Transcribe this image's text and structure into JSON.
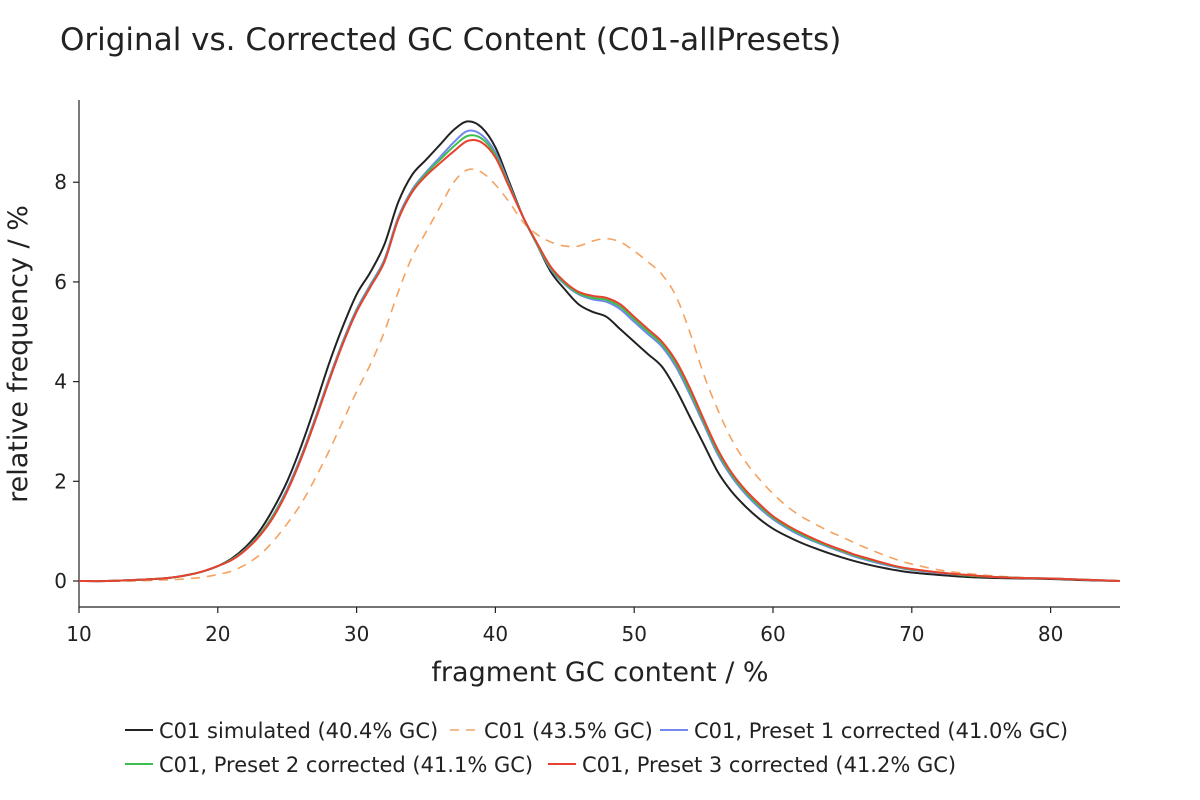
{
  "chart_data": {
    "type": "line",
    "title": "Original vs. Corrected GC Content (C01-allPresets)",
    "xlabel": "fragment GC content / %",
    "ylabel": "relative frequency / %",
    "xlim": [
      10,
      85
    ],
    "ylim": [
      -0.5,
      9.65
    ],
    "xticks": [
      10,
      20,
      30,
      40,
      50,
      60,
      70,
      80
    ],
    "yticks": [
      0,
      2,
      4,
      6,
      8
    ],
    "grid": false,
    "legend_position": "bottom",
    "x": [
      10,
      12,
      14,
      16,
      17,
      18,
      19,
      20,
      21,
      22,
      23,
      24,
      25,
      26,
      27,
      28,
      29,
      30,
      31,
      32,
      33,
      34,
      35,
      36,
      37,
      38,
      39,
      40,
      41,
      42,
      43,
      44,
      45,
      46,
      47,
      48,
      49,
      50,
      51,
      52,
      53,
      54,
      55,
      56,
      57,
      58,
      59,
      60,
      61,
      62,
      63,
      64,
      65,
      66,
      67,
      68,
      69,
      70,
      72,
      74,
      76,
      78,
      80,
      82,
      85
    ],
    "series": [
      {
        "name": "C01 simulated (40.4% GC)",
        "color": "#222222",
        "dash": "solid",
        "values": [
          0.0,
          0.0,
          0.02,
          0.05,
          0.08,
          0.13,
          0.2,
          0.3,
          0.45,
          0.68,
          1.0,
          1.45,
          2.0,
          2.7,
          3.5,
          4.35,
          5.1,
          5.75,
          6.2,
          6.75,
          7.6,
          8.15,
          8.45,
          8.75,
          9.05,
          9.22,
          9.1,
          8.7,
          8.0,
          7.3,
          6.75,
          6.2,
          5.85,
          5.55,
          5.4,
          5.3,
          5.05,
          4.8,
          4.55,
          4.3,
          3.85,
          3.3,
          2.75,
          2.2,
          1.8,
          1.5,
          1.25,
          1.05,
          0.9,
          0.77,
          0.66,
          0.56,
          0.47,
          0.39,
          0.32,
          0.26,
          0.21,
          0.17,
          0.12,
          0.08,
          0.06,
          0.05,
          0.04,
          0.02,
          0.0
        ]
      },
      {
        "name": "C01 (43.5% GC)",
        "color": "#f4a261",
        "dash": "dashed",
        "values": [
          0.0,
          0.0,
          0.0,
          0.02,
          0.03,
          0.05,
          0.08,
          0.13,
          0.2,
          0.33,
          0.52,
          0.8,
          1.15,
          1.55,
          2.05,
          2.6,
          3.2,
          3.8,
          4.35,
          5.0,
          5.8,
          6.5,
          7.0,
          7.5,
          8.0,
          8.25,
          8.2,
          7.95,
          7.6,
          7.2,
          6.95,
          6.8,
          6.72,
          6.72,
          6.82,
          6.87,
          6.8,
          6.62,
          6.4,
          6.15,
          5.72,
          5.0,
          4.15,
          3.45,
          2.85,
          2.4,
          2.05,
          1.75,
          1.5,
          1.3,
          1.15,
          1.0,
          0.88,
          0.75,
          0.63,
          0.52,
          0.42,
          0.34,
          0.22,
          0.15,
          0.1,
          0.07,
          0.05,
          0.03,
          0.0
        ]
      },
      {
        "name": "C01, Preset 1 corrected (41.0% GC)",
        "color": "#7287f0",
        "dash": "solid",
        "values": [
          0.0,
          0.0,
          0.02,
          0.05,
          0.08,
          0.13,
          0.2,
          0.3,
          0.43,
          0.64,
          0.93,
          1.33,
          1.85,
          2.5,
          3.25,
          4.05,
          4.8,
          5.45,
          5.95,
          6.45,
          7.3,
          7.85,
          8.2,
          8.5,
          8.8,
          9.03,
          8.95,
          8.6,
          7.95,
          7.3,
          6.75,
          6.25,
          5.95,
          5.75,
          5.65,
          5.6,
          5.45,
          5.2,
          4.95,
          4.7,
          4.3,
          3.75,
          3.15,
          2.55,
          2.1,
          1.75,
          1.47,
          1.24,
          1.06,
          0.91,
          0.79,
          0.68,
          0.58,
          0.48,
          0.4,
          0.33,
          0.27,
          0.22,
          0.16,
          0.11,
          0.08,
          0.06,
          0.05,
          0.03,
          0.0
        ]
      },
      {
        "name": "C01, Preset 2 corrected (41.1% GC)",
        "color": "#3dbf4f",
        "dash": "solid",
        "values": [
          0.0,
          0.0,
          0.02,
          0.05,
          0.08,
          0.13,
          0.2,
          0.3,
          0.43,
          0.63,
          0.92,
          1.31,
          1.82,
          2.47,
          3.22,
          4.02,
          4.77,
          5.42,
          5.92,
          6.42,
          7.27,
          7.82,
          8.17,
          8.45,
          8.72,
          8.93,
          8.88,
          8.55,
          7.93,
          7.3,
          6.76,
          6.27,
          5.97,
          5.77,
          5.68,
          5.64,
          5.5,
          5.25,
          5.0,
          4.75,
          4.36,
          3.81,
          3.2,
          2.6,
          2.14,
          1.79,
          1.51,
          1.27,
          1.09,
          0.94,
          0.81,
          0.7,
          0.6,
          0.5,
          0.42,
          0.35,
          0.28,
          0.23,
          0.17,
          0.11,
          0.08,
          0.06,
          0.05,
          0.03,
          0.0
        ]
      },
      {
        "name": "C01, Preset 3 corrected (41.2% GC)",
        "color": "#e8412f",
        "dash": "solid",
        "values": [
          0.0,
          0.0,
          0.02,
          0.05,
          0.08,
          0.13,
          0.2,
          0.3,
          0.42,
          0.62,
          0.9,
          1.28,
          1.8,
          2.45,
          3.2,
          4.0,
          4.75,
          5.4,
          5.9,
          6.4,
          7.25,
          7.8,
          8.13,
          8.38,
          8.62,
          8.83,
          8.8,
          8.5,
          7.9,
          7.3,
          6.78,
          6.3,
          6.0,
          5.8,
          5.72,
          5.68,
          5.55,
          5.3,
          5.05,
          4.8,
          4.42,
          3.88,
          3.25,
          2.65,
          2.18,
          1.83,
          1.55,
          1.3,
          1.12,
          0.97,
          0.84,
          0.72,
          0.62,
          0.52,
          0.44,
          0.36,
          0.29,
          0.24,
          0.17,
          0.12,
          0.08,
          0.06,
          0.05,
          0.03,
          0.0
        ]
      }
    ]
  }
}
